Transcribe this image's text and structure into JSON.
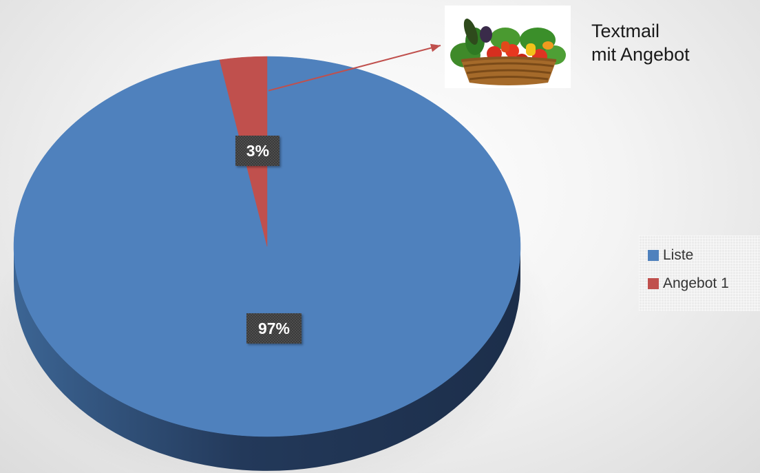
{
  "chart_data": {
    "type": "pie",
    "style": "3d",
    "categories": [
      "Liste",
      "Angebot 1"
    ],
    "values": [
      97,
      3
    ],
    "value_unit": "%",
    "data_labels": [
      "97%",
      "3%"
    ],
    "colors": [
      "#4f81bd",
      "#c0504d"
    ],
    "legend_position": "right",
    "legend": [
      {
        "label": "Liste",
        "color": "#4f81bd"
      },
      {
        "label": "Angebot 1",
        "color": "#c0504d"
      }
    ],
    "annotation": {
      "lines": [
        "Textmail",
        "mit Angebot"
      ],
      "image_icon": "vegetable-basket-icon",
      "arrow_color": "#c0504d"
    }
  }
}
